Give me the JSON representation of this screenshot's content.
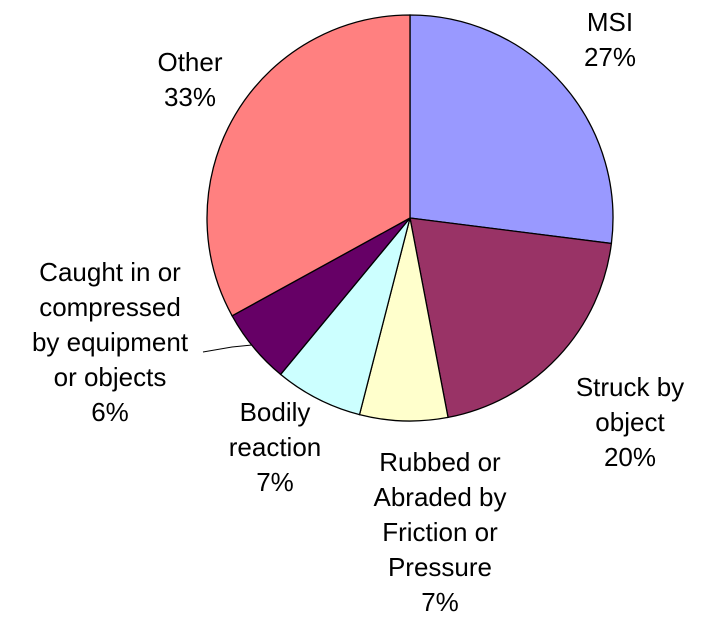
{
  "chart_data": {
    "type": "pie",
    "categories": [
      "MSI",
      "Struck by\nobject",
      "Rubbed or\nAbraded by\nFriction or\nPressure",
      "Bodily\nreaction",
      "Caught in or\ncompressed\nby equipment\nor objects",
      "Other"
    ],
    "values": [
      27,
      20,
      7,
      7,
      6,
      33
    ],
    "value_labels": [
      "27%",
      "20%",
      "7%",
      "7%",
      "6%",
      "33%"
    ],
    "colors": [
      "#9999ff",
      "#993366",
      "#ffffcc",
      "#ccffff",
      "#660066",
      "#ff8080"
    ]
  }
}
